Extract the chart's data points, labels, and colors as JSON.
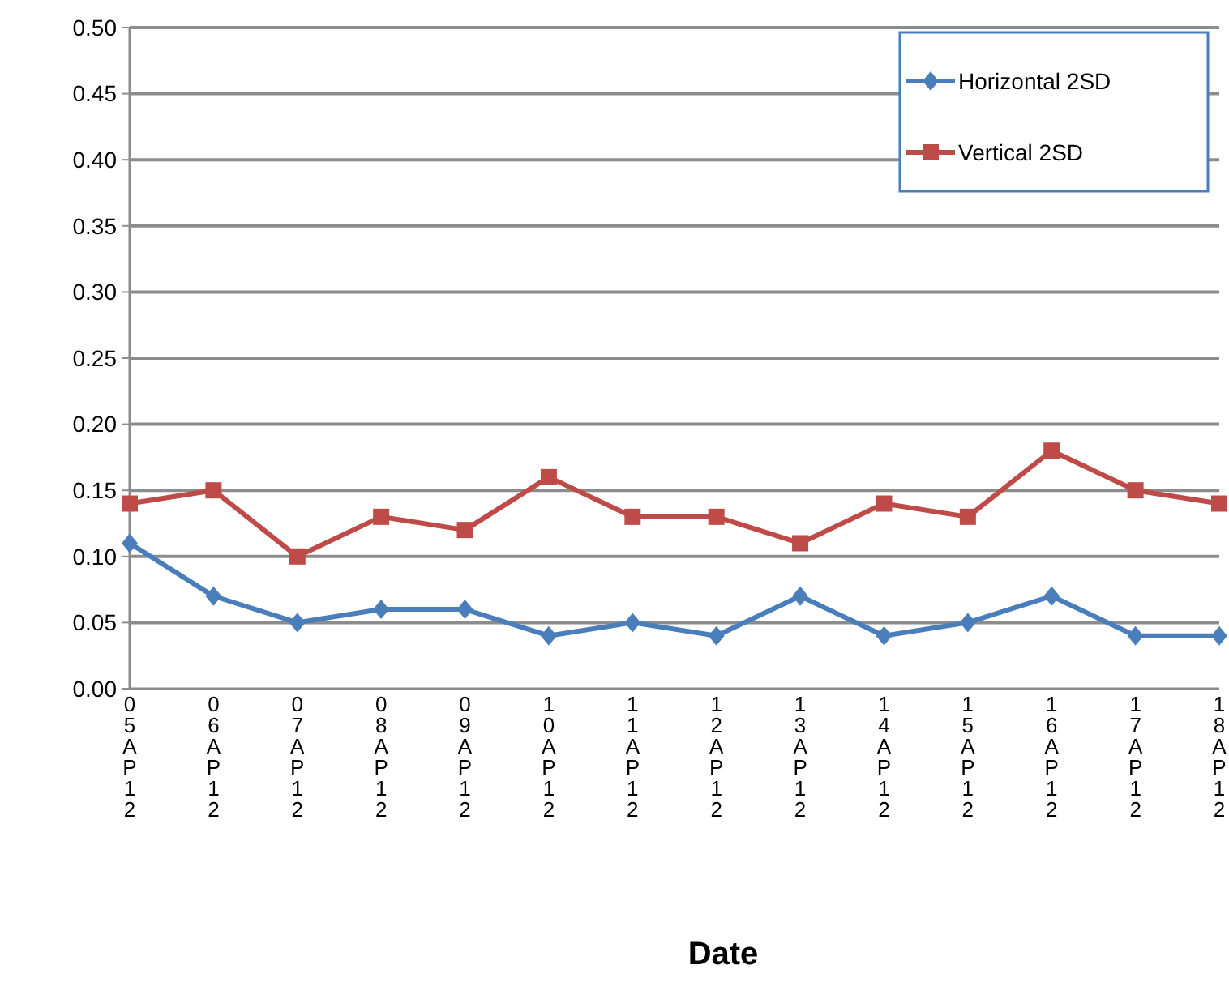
{
  "chart_data": {
    "type": "line",
    "xlabel": "Date",
    "categories": [
      "05AP12",
      "06AP12",
      "07AP12",
      "08AP12",
      "09AP12",
      "10AP12",
      "11AP12",
      "12AP12",
      "13AP12",
      "14AP12",
      "15AP12",
      "16AP12",
      "17AP12",
      "18AP12"
    ],
    "series": [
      {
        "name": "Horizontal 2SD",
        "color": "#4a7ebb",
        "marker": "diamond",
        "values": [
          0.11,
          0.07,
          0.05,
          0.06,
          0.06,
          0.04,
          0.05,
          0.04,
          0.07,
          0.04,
          0.05,
          0.07,
          0.04,
          0.04
        ]
      },
      {
        "name": "Vertical 2SD",
        "color": "#be4b48",
        "marker": "square",
        "values": [
          0.14,
          0.15,
          0.1,
          0.13,
          0.12,
          0.16,
          0.13,
          0.13,
          0.11,
          0.14,
          0.13,
          0.18,
          0.15,
          0.14
        ]
      }
    ],
    "ylim": [
      0,
      0.5
    ],
    "yticks": [
      {
        "value": 0,
        "label": "0.00"
      },
      {
        "value": 0.05,
        "label": "0.05"
      },
      {
        "value": 0.1,
        "label": "0.10"
      },
      {
        "value": 0.15,
        "label": "0.15"
      },
      {
        "value": 0.2,
        "label": "0.20"
      },
      {
        "value": 0.25,
        "label": "0.25"
      },
      {
        "value": 0.3,
        "label": "0.30"
      },
      {
        "value": 0.35,
        "label": "0.35"
      },
      {
        "value": 0.4,
        "label": "0.40"
      },
      {
        "value": 0.45,
        "label": "0.45"
      },
      {
        "value": 0.5,
        "label": "0.50"
      }
    ],
    "grid": "y",
    "legend": "top right",
    "line_style": "solid"
  }
}
